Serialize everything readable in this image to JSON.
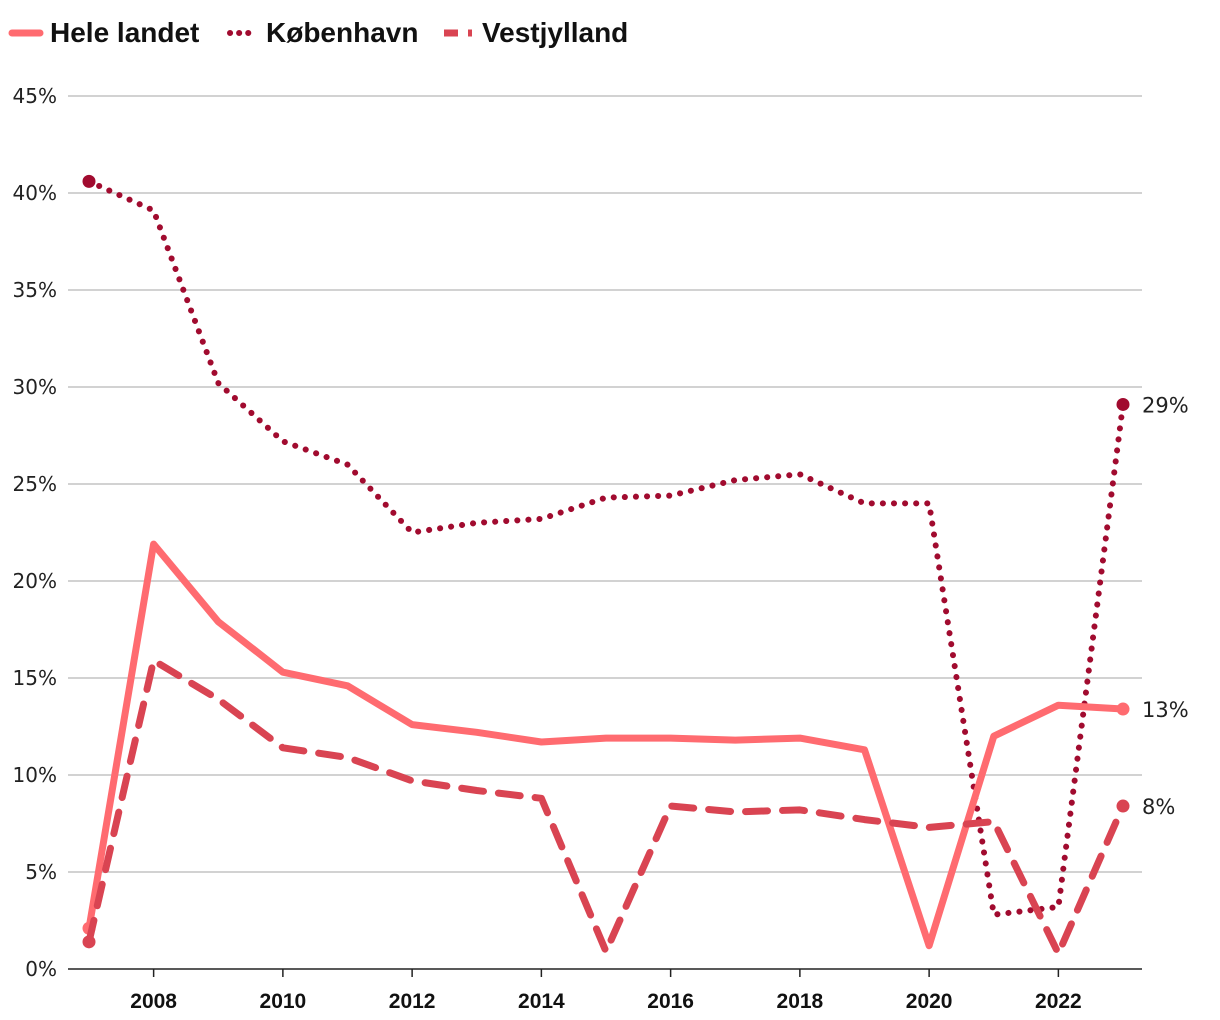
{
  "chart_data": {
    "type": "line",
    "title": "",
    "xlabel": "",
    "ylabel": "",
    "ylim": [
      0,
      45
    ],
    "yticks": [
      0,
      5,
      10,
      15,
      20,
      25,
      30,
      35,
      40,
      45
    ],
    "ytick_labels": [
      "0%",
      "5%",
      "10%",
      "15%",
      "20%",
      "25%",
      "30%",
      "35%",
      "40%",
      "45%"
    ],
    "xlim": [
      2007,
      2023
    ],
    "xticks": [
      2008,
      2010,
      2012,
      2014,
      2016,
      2018,
      2020,
      2022
    ],
    "xtick_labels": [
      "2008",
      "2010",
      "2012",
      "2014",
      "2016",
      "2018",
      "2020",
      "2022"
    ],
    "x": [
      2007,
      2008,
      2009,
      2010,
      2011,
      2012,
      2013,
      2014,
      2015,
      2016,
      2017,
      2018,
      2019,
      2020,
      2021,
      2022,
      2023
    ],
    "grid": true,
    "legend_position": "top-left",
    "series": [
      {
        "name": "Hele landet",
        "style": "solid",
        "color": "#ff6b70",
        "values": [
          2.1,
          21.9,
          17.9,
          15.3,
          14.6,
          12.6,
          12.2,
          11.7,
          11.9,
          11.9,
          11.8,
          11.9,
          11.3,
          1.2,
          12.0,
          13.6,
          13.4
        ],
        "end_label": "13%"
      },
      {
        "name": "København",
        "style": "dotted",
        "color": "#a10b2f",
        "values": [
          40.6,
          39.1,
          30.2,
          27.2,
          26.0,
          22.5,
          23.0,
          23.2,
          24.3,
          24.4,
          25.2,
          25.5,
          24.0,
          24.0,
          2.8,
          3.2,
          29.1
        ],
        "end_label": "29%"
      },
      {
        "name": "Vestjylland",
        "style": "dashed",
        "color": "#d94452",
        "values": [
          1.4,
          15.9,
          13.9,
          11.4,
          10.9,
          9.7,
          9.2,
          8.8,
          0.9,
          8.4,
          8.1,
          8.2,
          7.7,
          7.3,
          7.6,
          0.8,
          8.4
        ],
        "end_label": "8%"
      }
    ]
  }
}
